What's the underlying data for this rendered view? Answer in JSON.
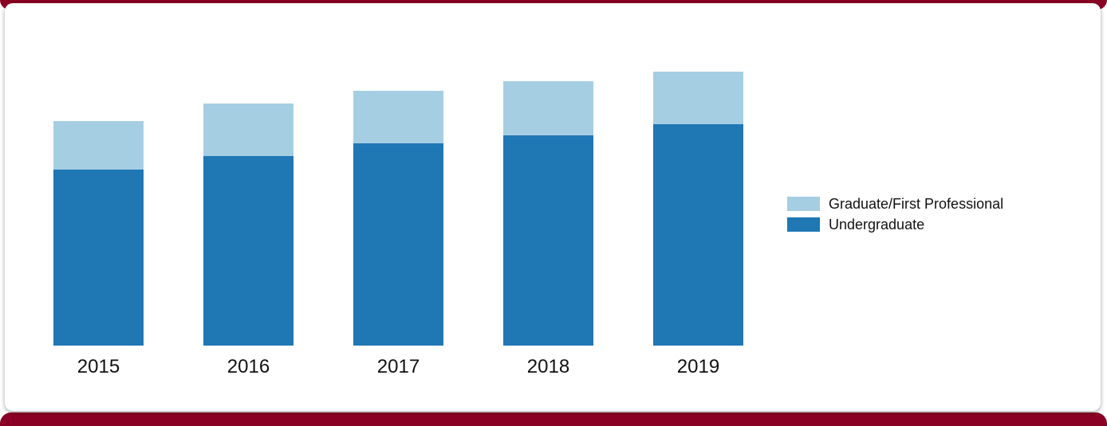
{
  "chart_data": {
    "type": "bar",
    "stacked": true,
    "categories": [
      "2015",
      "2016",
      "2017",
      "2018",
      "2019"
    ],
    "series": [
      {
        "name": "Undergraduate",
        "values": [
          221,
          238,
          254,
          264,
          278
        ],
        "color": "#1f77b4"
      },
      {
        "name": "Graduate/First Professional",
        "values": [
          61,
          66,
          66,
          68,
          66
        ],
        "color": "#a6cee3"
      }
    ],
    "title": "",
    "xlabel": "",
    "ylabel": "",
    "ylim": [
      0,
      350
    ],
    "grid": false,
    "legend_position": "right"
  },
  "legend": {
    "items": [
      {
        "label": "Graduate/First Professional",
        "color": "#a6cee3"
      },
      {
        "label": "Undergraduate",
        "color": "#1f77b4"
      }
    ]
  },
  "frame": {
    "accent_color": "#8a0024"
  }
}
